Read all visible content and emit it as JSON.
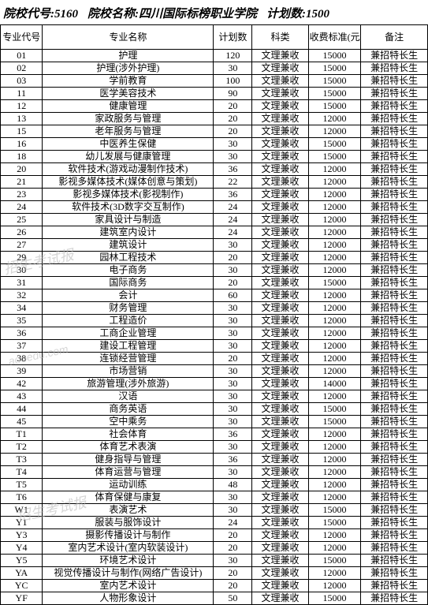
{
  "header": {
    "school_code_label": "院校代号:",
    "school_code": "5160",
    "school_name_label": "院校名称:",
    "school_name": "四川国际标榜职业学院",
    "plan_total_label": "计划数:",
    "plan_total": "1500"
  },
  "columns": {
    "major_code": "专业代号",
    "major_name": "专业名称",
    "plan": "计划数",
    "subject": "科类",
    "fee": "收费标准(元/年)",
    "note": "备注"
  },
  "watermarks": {
    "wm1": "招生考试报",
    "wm2": "aooedu.com",
    "wm3": "招生考试报"
  },
  "rows": [
    {
      "code": "01",
      "name": "护理",
      "plan": "120",
      "subject": "文理兼收",
      "fee": "15000",
      "note": "兼招特长生"
    },
    {
      "code": "02",
      "name": "护理(涉外护理)",
      "plan": "30",
      "subject": "文理兼收",
      "fee": "15000",
      "note": "兼招特长生"
    },
    {
      "code": "03",
      "name": "学前教育",
      "plan": "100",
      "subject": "文理兼收",
      "fee": "15000",
      "note": "兼招特长生"
    },
    {
      "code": "11",
      "name": "医学美容技术",
      "plan": "90",
      "subject": "文理兼收",
      "fee": "15000",
      "note": "兼招特长生"
    },
    {
      "code": "12",
      "name": "健康管理",
      "plan": "20",
      "subject": "文理兼收",
      "fee": "15000",
      "note": "兼招特长生"
    },
    {
      "code": "13",
      "name": "家政服务与管理",
      "plan": "20",
      "subject": "文理兼收",
      "fee": "12000",
      "note": "兼招特长生"
    },
    {
      "code": "15",
      "name": "老年服务与管理",
      "plan": "20",
      "subject": "文理兼收",
      "fee": "12000",
      "note": "兼招特长生"
    },
    {
      "code": "16",
      "name": "中医养生保健",
      "plan": "30",
      "subject": "文理兼收",
      "fee": "15000",
      "note": "兼招特长生"
    },
    {
      "code": "18",
      "name": "幼儿发展与健康管理",
      "plan": "30",
      "subject": "文理兼收",
      "fee": "15000",
      "note": "兼招特长生"
    },
    {
      "code": "20",
      "name": "软件技术(游戏动漫制作技术)",
      "plan": "36",
      "subject": "文理兼收",
      "fee": "12000",
      "note": "兼招特长生"
    },
    {
      "code": "21",
      "name": "影视多媒体技术(媒体创意与策划)",
      "plan": "22",
      "subject": "文理兼收",
      "fee": "12000",
      "note": "兼招特长生"
    },
    {
      "code": "23",
      "name": "影视多媒体技术(影视制作)",
      "plan": "36",
      "subject": "文理兼收",
      "fee": "12000",
      "note": "兼招特长生"
    },
    {
      "code": "24",
      "name": "软件技术(3D数字交互制作)",
      "plan": "24",
      "subject": "文理兼收",
      "fee": "12000",
      "note": "兼招特长生"
    },
    {
      "code": "25",
      "name": "家具设计与制造",
      "plan": "24",
      "subject": "文理兼收",
      "fee": "12000",
      "note": "兼招特长生"
    },
    {
      "code": "26",
      "name": "建筑室内设计",
      "plan": "24",
      "subject": "文理兼收",
      "fee": "12000",
      "note": "兼招特长生"
    },
    {
      "code": "27",
      "name": "建筑设计",
      "plan": "30",
      "subject": "文理兼收",
      "fee": "12000",
      "note": "兼招特长生"
    },
    {
      "code": "29",
      "name": "园林工程技术",
      "plan": "20",
      "subject": "文理兼收",
      "fee": "12000",
      "note": "兼招特长生"
    },
    {
      "code": "30",
      "name": "电子商务",
      "plan": "30",
      "subject": "文理兼收",
      "fee": "12000",
      "note": "兼招特长生"
    },
    {
      "code": "31",
      "name": "国际商务",
      "plan": "20",
      "subject": "文理兼收",
      "fee": "15000",
      "note": "兼招特长生"
    },
    {
      "code": "32",
      "name": "会计",
      "plan": "60",
      "subject": "文理兼收",
      "fee": "12000",
      "note": "兼招特长生"
    },
    {
      "code": "34",
      "name": "财务管理",
      "plan": "30",
      "subject": "文理兼收",
      "fee": "12000",
      "note": "兼招特长生"
    },
    {
      "code": "35",
      "name": "工程造价",
      "plan": "30",
      "subject": "文理兼收",
      "fee": "12000",
      "note": "兼招特长生"
    },
    {
      "code": "36",
      "name": "工商企业管理",
      "plan": "30",
      "subject": "文理兼收",
      "fee": "12000",
      "note": "兼招特长生"
    },
    {
      "code": "37",
      "name": "建设工程管理",
      "plan": "30",
      "subject": "文理兼收",
      "fee": "12000",
      "note": "兼招特长生"
    },
    {
      "code": "38",
      "name": "连锁经营管理",
      "plan": "20",
      "subject": "文理兼收",
      "fee": "12000",
      "note": "兼招特长生"
    },
    {
      "code": "39",
      "name": "市场营销",
      "plan": "30",
      "subject": "文理兼收",
      "fee": "12000",
      "note": "兼招特长生"
    },
    {
      "code": "42",
      "name": "旅游管理(涉外旅游)",
      "plan": "30",
      "subject": "文理兼收",
      "fee": "14000",
      "note": "兼招特长生"
    },
    {
      "code": "43",
      "name": "汉语",
      "plan": "30",
      "subject": "文理兼收",
      "fee": "12000",
      "note": "兼招特长生"
    },
    {
      "code": "44",
      "name": "商务英语",
      "plan": "30",
      "subject": "文理兼收",
      "fee": "15000",
      "note": "兼招特长生"
    },
    {
      "code": "45",
      "name": "空中乘务",
      "plan": "30",
      "subject": "文理兼收",
      "fee": "15000",
      "note": "兼招特长生"
    },
    {
      "code": "T1",
      "name": "社会体育",
      "plan": "36",
      "subject": "文理兼收",
      "fee": "12000",
      "note": "兼招特长生"
    },
    {
      "code": "T2",
      "name": "体育艺术表演",
      "plan": "30",
      "subject": "文理兼收",
      "fee": "12000",
      "note": "兼招特长生"
    },
    {
      "code": "T3",
      "name": "健身指导与管理",
      "plan": "36",
      "subject": "文理兼收",
      "fee": "12000",
      "note": "兼招特长生"
    },
    {
      "code": "T4",
      "name": "体育运营与管理",
      "plan": "30",
      "subject": "文理兼收",
      "fee": "12000",
      "note": "兼招特长生"
    },
    {
      "code": "T5",
      "name": "运动训练",
      "plan": "48",
      "subject": "文理兼收",
      "fee": "12000",
      "note": "兼招特长生"
    },
    {
      "code": "T6",
      "name": "体育保健与康复",
      "plan": "30",
      "subject": "文理兼收",
      "fee": "12000",
      "note": "兼招特长生"
    },
    {
      "code": "W1",
      "name": "表演艺术",
      "plan": "30",
      "subject": "文理兼收",
      "fee": "15000",
      "note": "兼招特长生"
    },
    {
      "code": "Y1",
      "name": "服装与服饰设计",
      "plan": "24",
      "subject": "文理兼收",
      "fee": "15000",
      "note": "兼招特长生"
    },
    {
      "code": "Y3",
      "name": "摄影传播设计与制作",
      "plan": "20",
      "subject": "文理兼收",
      "fee": "12000",
      "note": "兼招特长生"
    },
    {
      "code": "Y4",
      "name": "室内艺术设计(室内软装设计)",
      "plan": "20",
      "subject": "文理兼收",
      "fee": "12000",
      "note": "兼招特长生"
    },
    {
      "code": "Y5",
      "name": "环境艺术设计",
      "plan": "30",
      "subject": "文理兼收",
      "fee": "15000",
      "note": "兼招特长生"
    },
    {
      "code": "YA",
      "name": "视觉传播设计与制作(网络广告设计)",
      "plan": "20",
      "subject": "文理兼收",
      "fee": "12000",
      "note": "兼招特长生"
    },
    {
      "code": "YC",
      "name": "室内艺术设计",
      "plan": "20",
      "subject": "文理兼收",
      "fee": "12000",
      "note": "兼招特长生"
    },
    {
      "code": "YF",
      "name": "人物形象设计",
      "plan": "50",
      "subject": "文理兼收",
      "fee": "15000",
      "note": "兼招特长生"
    }
  ]
}
